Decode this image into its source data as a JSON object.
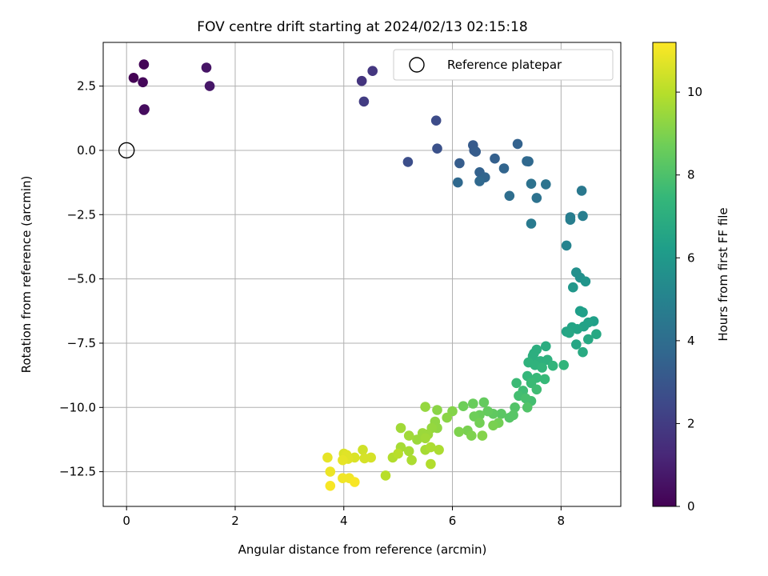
{
  "chart_data": {
    "type": "scatter",
    "title": "FOV centre drift starting at 2024/02/13 02:15:18",
    "xlabel": "Angular distance from reference (arcmin)",
    "ylabel": "Rotation from reference (arcmin)",
    "xlim": [
      -0.43,
      9.1
    ],
    "ylim": [
      -13.85,
      4.2
    ],
    "xticks": [
      0,
      2,
      4,
      6,
      8
    ],
    "yticks": [
      2.5,
      0.0,
      -2.5,
      -5.0,
      -7.5,
      -10.0,
      -12.5
    ],
    "xtick_labels": [
      "0",
      "2",
      "4",
      "6",
      "8"
    ],
    "ytick_labels": [
      "2.5",
      "0.0",
      "−2.5",
      "−5.0",
      "−7.5",
      "−10.0",
      "−12.5"
    ],
    "grid": true,
    "legend": {
      "position": "upper-right",
      "entries": [
        "Reference platepar"
      ]
    },
    "reference_point": {
      "x": 0,
      "y": 0,
      "label": "Reference platepar"
    },
    "colorbar": {
      "label": "Hours from first FF file",
      "range": [
        0,
        11.2
      ],
      "ticks": [
        0,
        2,
        4,
        6,
        8,
        10
      ],
      "tick_labels": [
        "0",
        "2",
        "4",
        "6",
        "8",
        "10"
      ],
      "colormap": "viridis"
    },
    "colormap_stops": [
      "#440154",
      "#482878",
      "#3e4989",
      "#31688e",
      "#26828e",
      "#1f9e89",
      "#35b779",
      "#6ece58",
      "#b5de2b",
      "#fde725"
    ],
    "points": [
      [
        0.13,
        2.82,
        0.05
      ],
      [
        0.32,
        3.34,
        0.1
      ],
      [
        0.3,
        2.65,
        0.2
      ],
      [
        0.32,
        1.57,
        0.3
      ],
      [
        0.33,
        1.6,
        0.35
      ],
      [
        1.47,
        3.22,
        0.6
      ],
      [
        1.53,
        2.5,
        0.7
      ],
      [
        4.33,
        2.7,
        1.7
      ],
      [
        4.53,
        3.09,
        1.8
      ],
      [
        4.37,
        1.9,
        2.0
      ],
      [
        5.7,
        1.16,
        2.6
      ],
      [
        5.72,
        0.07,
        2.8
      ],
      [
        5.18,
        -0.45,
        2.7
      ],
      [
        6.38,
        0.2,
        3.2
      ],
      [
        6.4,
        0.0,
        3.2
      ],
      [
        6.43,
        -0.05,
        3.3
      ],
      [
        6.78,
        -0.32,
        3.4
      ],
      [
        7.2,
        0.25,
        3.5
      ],
      [
        6.13,
        -0.5,
        3.3
      ],
      [
        6.5,
        -0.85,
        3.5
      ],
      [
        6.6,
        -1.05,
        3.6
      ],
      [
        6.95,
        -0.7,
        3.6
      ],
      [
        7.37,
        -0.42,
        3.8
      ],
      [
        7.4,
        -0.43,
        3.8
      ],
      [
        6.5,
        -1.2,
        3.8
      ],
      [
        6.1,
        -1.25,
        3.8
      ],
      [
        7.05,
        -1.77,
        4.0
      ],
      [
        7.45,
        -1.3,
        4.2
      ],
      [
        7.55,
        -1.85,
        4.2
      ],
      [
        7.72,
        -1.32,
        4.3
      ],
      [
        8.38,
        -1.57,
        4.5
      ],
      [
        7.45,
        -2.85,
        4.6
      ],
      [
        8.17,
        -2.6,
        4.7
      ],
      [
        8.17,
        -2.7,
        4.8
      ],
      [
        8.4,
        -2.55,
        4.8
      ],
      [
        8.1,
        -3.7,
        5.0
      ],
      [
        8.28,
        -4.75,
        5.6
      ],
      [
        8.35,
        -4.95,
        5.6
      ],
      [
        8.45,
        -5.1,
        5.8
      ],
      [
        8.22,
        -5.33,
        5.9
      ],
      [
        8.35,
        -6.25,
        6.2
      ],
      [
        8.4,
        -6.3,
        6.3
      ],
      [
        8.6,
        -6.65,
        6.3
      ],
      [
        8.5,
        -6.7,
        6.4
      ],
      [
        8.42,
        -6.85,
        6.4
      ],
      [
        8.3,
        -6.95,
        6.5
      ],
      [
        8.2,
        -6.88,
        6.5
      ],
      [
        8.1,
        -7.05,
        6.5
      ],
      [
        8.15,
        -7.1,
        6.6
      ],
      [
        8.28,
        -7.55,
        6.6
      ],
      [
        8.65,
        -7.15,
        6.7
      ],
      [
        8.5,
        -7.35,
        6.7
      ],
      [
        8.4,
        -7.85,
        6.8
      ],
      [
        7.72,
        -7.62,
        6.9
      ],
      [
        7.55,
        -7.75,
        7.0
      ],
      [
        7.5,
        -7.9,
        7.0
      ],
      [
        7.48,
        -8.0,
        7.0
      ],
      [
        7.62,
        -8.2,
        7.1
      ],
      [
        7.75,
        -8.15,
        7.1
      ],
      [
        7.4,
        -8.25,
        7.2
      ],
      [
        7.52,
        -8.35,
        7.2
      ],
      [
        8.05,
        -8.35,
        7.3
      ],
      [
        7.65,
        -8.45,
        7.3
      ],
      [
        7.85,
        -8.38,
        7.3
      ],
      [
        7.38,
        -8.78,
        7.4
      ],
      [
        7.55,
        -8.85,
        7.5
      ],
      [
        7.7,
        -8.9,
        7.5
      ],
      [
        7.45,
        -9.05,
        7.6
      ],
      [
        7.18,
        -9.05,
        7.6
      ],
      [
        7.55,
        -9.3,
        7.7
      ],
      [
        7.3,
        -9.35,
        7.7
      ],
      [
        7.22,
        -9.55,
        7.8
      ],
      [
        7.45,
        -9.75,
        7.8
      ],
      [
        7.35,
        -9.65,
        7.9
      ],
      [
        7.38,
        -10.0,
        8.1
      ],
      [
        7.15,
        -10.0,
        8.1
      ],
      [
        7.12,
        -10.3,
        8.2
      ],
      [
        7.05,
        -10.4,
        8.2
      ],
      [
        6.9,
        -10.25,
        8.3
      ],
      [
        6.75,
        -10.25,
        8.4
      ],
      [
        6.58,
        -9.8,
        8.5
      ],
      [
        6.65,
        -10.15,
        8.5
      ],
      [
        6.5,
        -10.3,
        8.6
      ],
      [
        6.38,
        -9.85,
        8.6
      ],
      [
        6.2,
        -9.95,
        8.7
      ],
      [
        6.4,
        -10.35,
        8.7
      ],
      [
        6.5,
        -10.6,
        8.8
      ],
      [
        6.85,
        -10.6,
        8.8
      ],
      [
        6.75,
        -10.7,
        8.9
      ],
      [
        6.28,
        -10.9,
        8.9
      ],
      [
        6.12,
        -10.95,
        9.0
      ],
      [
        6.35,
        -11.1,
        9.0
      ],
      [
        6.55,
        -11.1,
        9.1
      ],
      [
        6.0,
        -10.15,
        9.1
      ],
      [
        5.9,
        -10.4,
        9.2
      ],
      [
        5.72,
        -10.1,
        9.2
      ],
      [
        5.68,
        -10.55,
        9.3
      ],
      [
        5.72,
        -10.8,
        9.3
      ],
      [
        5.5,
        -9.98,
        9.4
      ],
      [
        5.62,
        -10.8,
        9.4
      ],
      [
        5.55,
        -11.05,
        9.5
      ],
      [
        5.45,
        -11.0,
        9.5
      ],
      [
        5.35,
        -11.25,
        9.5
      ],
      [
        5.5,
        -11.2,
        9.6
      ],
      [
        5.2,
        -11.1,
        9.6
      ],
      [
        5.05,
        -10.8,
        9.6
      ],
      [
        5.05,
        -11.55,
        9.7
      ],
      [
        5.2,
        -11.7,
        9.7
      ],
      [
        5.5,
        -11.65,
        9.7
      ],
      [
        5.6,
        -11.55,
        9.8
      ],
      [
        5.75,
        -11.65,
        9.8
      ],
      [
        5.25,
        -12.05,
        9.8
      ],
      [
        5.6,
        -12.2,
        9.9
      ],
      [
        4.9,
        -11.95,
        9.9
      ],
      [
        5.0,
        -11.8,
        10.0
      ],
      [
        4.77,
        -12.65,
        10.0
      ],
      [
        4.35,
        -11.65,
        10.4
      ],
      [
        4.5,
        -11.95,
        10.5
      ],
      [
        4.38,
        -11.98,
        10.5
      ],
      [
        4.2,
        -11.95,
        10.6
      ],
      [
        4.0,
        -11.8,
        10.6
      ],
      [
        4.05,
        -11.85,
        10.7
      ],
      [
        4.08,
        -12.0,
        10.7
      ],
      [
        3.98,
        -12.05,
        10.8
      ],
      [
        3.7,
        -11.95,
        10.8
      ],
      [
        3.75,
        -12.5,
        10.9
      ],
      [
        3.98,
        -12.75,
        11.0
      ],
      [
        4.1,
        -12.75,
        11.0
      ],
      [
        4.2,
        -12.9,
        11.1
      ],
      [
        3.75,
        -13.05,
        11.1
      ]
    ]
  }
}
